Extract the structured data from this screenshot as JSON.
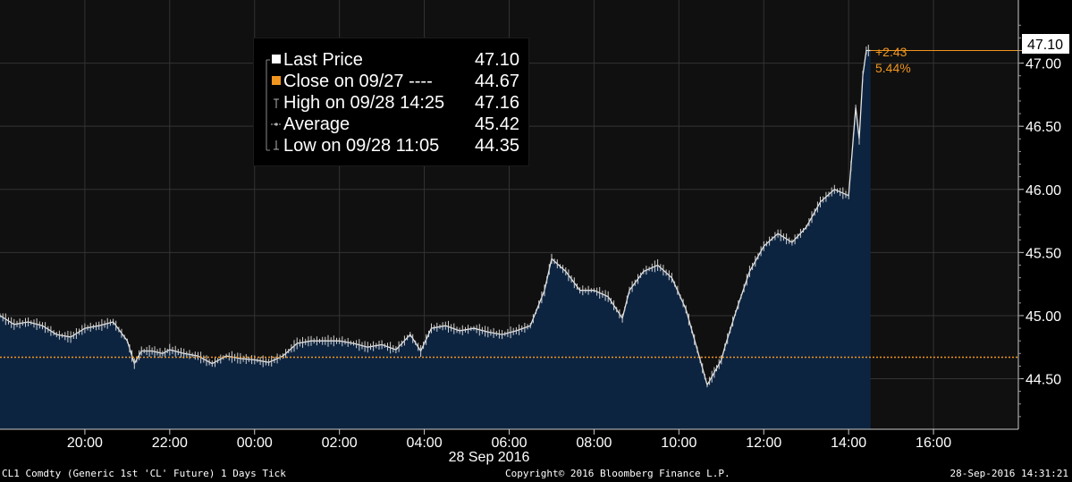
{
  "chart_data": {
    "type": "line",
    "title": "",
    "xlabel": "28 Sep 2016",
    "ylabel": "",
    "x_ticks": [
      "20:00",
      "22:00",
      "00:00",
      "02:00",
      "04:00",
      "06:00",
      "08:00",
      "10:00",
      "12:00",
      "14:00",
      "16:00"
    ],
    "y_ticks": [
      "44.50",
      "45.00",
      "45.50",
      "46.00",
      "46.50",
      "47.00"
    ],
    "ylim": [
      44.1,
      47.5
    ],
    "xlim": [
      "2016-09-27T18:00",
      "2016-09-28T18:00"
    ],
    "grid": true,
    "series": [
      {
        "name": "Last Price",
        "x": [
          "2016-09-27T18:00",
          "2016-09-27T18:20",
          "2016-09-27T18:40",
          "2016-09-27T19:00",
          "2016-09-27T19:20",
          "2016-09-27T19:40",
          "2016-09-27T20:00",
          "2016-09-27T20:20",
          "2016-09-27T20:40",
          "2016-09-27T21:00",
          "2016-09-27T21:10",
          "2016-09-27T21:20",
          "2016-09-27T21:35",
          "2016-09-27T21:50",
          "2016-09-27T22:00",
          "2016-09-27T22:20",
          "2016-09-27T22:40",
          "2016-09-27T23:00",
          "2016-09-27T23:20",
          "2016-09-27T23:40",
          "2016-09-28T00:00",
          "2016-09-28T00:20",
          "2016-09-28T00:40",
          "2016-09-28T01:00",
          "2016-09-28T01:20",
          "2016-09-28T01:40",
          "2016-09-28T02:00",
          "2016-09-28T02:20",
          "2016-09-28T02:40",
          "2016-09-28T03:00",
          "2016-09-28T03:20",
          "2016-09-28T03:40",
          "2016-09-28T03:55",
          "2016-09-28T04:10",
          "2016-09-28T04:30",
          "2016-09-28T04:50",
          "2016-09-28T05:10",
          "2016-09-28T05:30",
          "2016-09-28T05:50",
          "2016-09-28T06:10",
          "2016-09-28T06:30",
          "2016-09-28T06:50",
          "2016-09-28T07:00",
          "2016-09-28T07:20",
          "2016-09-28T07:40",
          "2016-09-28T08:00",
          "2016-09-28T08:20",
          "2016-09-28T08:40",
          "2016-09-28T08:50",
          "2016-09-28T09:10",
          "2016-09-28T09:30",
          "2016-09-28T09:50",
          "2016-09-28T10:10",
          "2016-09-28T10:30",
          "2016-09-28T10:40",
          "2016-09-28T10:50",
          "2016-09-28T11:00",
          "2016-09-28T11:05",
          "2016-09-28T11:20",
          "2016-09-28T11:40",
          "2016-09-28T12:00",
          "2016-09-28T12:20",
          "2016-09-28T12:40",
          "2016-09-28T13:00",
          "2016-09-28T13:20",
          "2016-09-28T13:40",
          "2016-09-28T14:00",
          "2016-09-28T14:10",
          "2016-09-28T14:15",
          "2016-09-28T14:20",
          "2016-09-28T14:25",
          "2016-09-28T14:31"
        ],
        "values": [
          45.0,
          44.93,
          44.95,
          44.92,
          44.85,
          44.83,
          44.9,
          44.92,
          44.95,
          44.8,
          44.62,
          44.72,
          44.72,
          44.7,
          44.73,
          44.7,
          44.68,
          44.62,
          44.68,
          44.66,
          44.65,
          44.63,
          44.68,
          44.78,
          44.8,
          44.8,
          44.8,
          44.78,
          44.75,
          44.77,
          44.73,
          44.85,
          44.72,
          44.9,
          44.92,
          44.88,
          44.9,
          44.87,
          44.85,
          44.88,
          44.92,
          45.2,
          45.45,
          45.35,
          45.2,
          45.2,
          45.15,
          44.98,
          45.2,
          45.35,
          45.4,
          45.3,
          45.05,
          44.65,
          44.45,
          44.55,
          44.65,
          44.75,
          45.02,
          45.35,
          45.55,
          45.65,
          45.58,
          45.7,
          45.9,
          46.0,
          45.95,
          46.65,
          46.4,
          46.9,
          47.1,
          47.1
        ]
      },
      {
        "name": "Close on 09/27 ----",
        "value": 44.67
      }
    ],
    "legend": [
      {
        "label": "Last Price",
        "value": "47.10",
        "color": "#ffffff"
      },
      {
        "label": "Close on 09/27 ----",
        "value": "44.67",
        "color": "#f0951e"
      },
      {
        "label": "High on 09/28 14:25",
        "value": "47.16",
        "color": "#b4b4b4"
      },
      {
        "label": "Average",
        "value": "45.42",
        "color": "#b4b4b4"
      },
      {
        "label": "Low on 09/28 11:05",
        "value": "44.35",
        "color": "#b4b4b4"
      }
    ],
    "legend_position": "top-left",
    "last_price_label": "47.10",
    "change_abs": "+2.43",
    "change_pct": "5.44%",
    "colors": {
      "background": "#000000",
      "plot_background": "#101010",
      "area_fill": "#0d2440",
      "line": "#e6e6e6",
      "close_line": "#f0951e",
      "grid": "#333333",
      "text": "#ffffff"
    }
  },
  "footer": {
    "left": "CL1 Comdty (Generic 1st 'CL' Future) 1 Days  Tick",
    "center": "Copyright© 2016 Bloomberg Finance L.P.",
    "right": "28-Sep-2016 14:31:21"
  }
}
